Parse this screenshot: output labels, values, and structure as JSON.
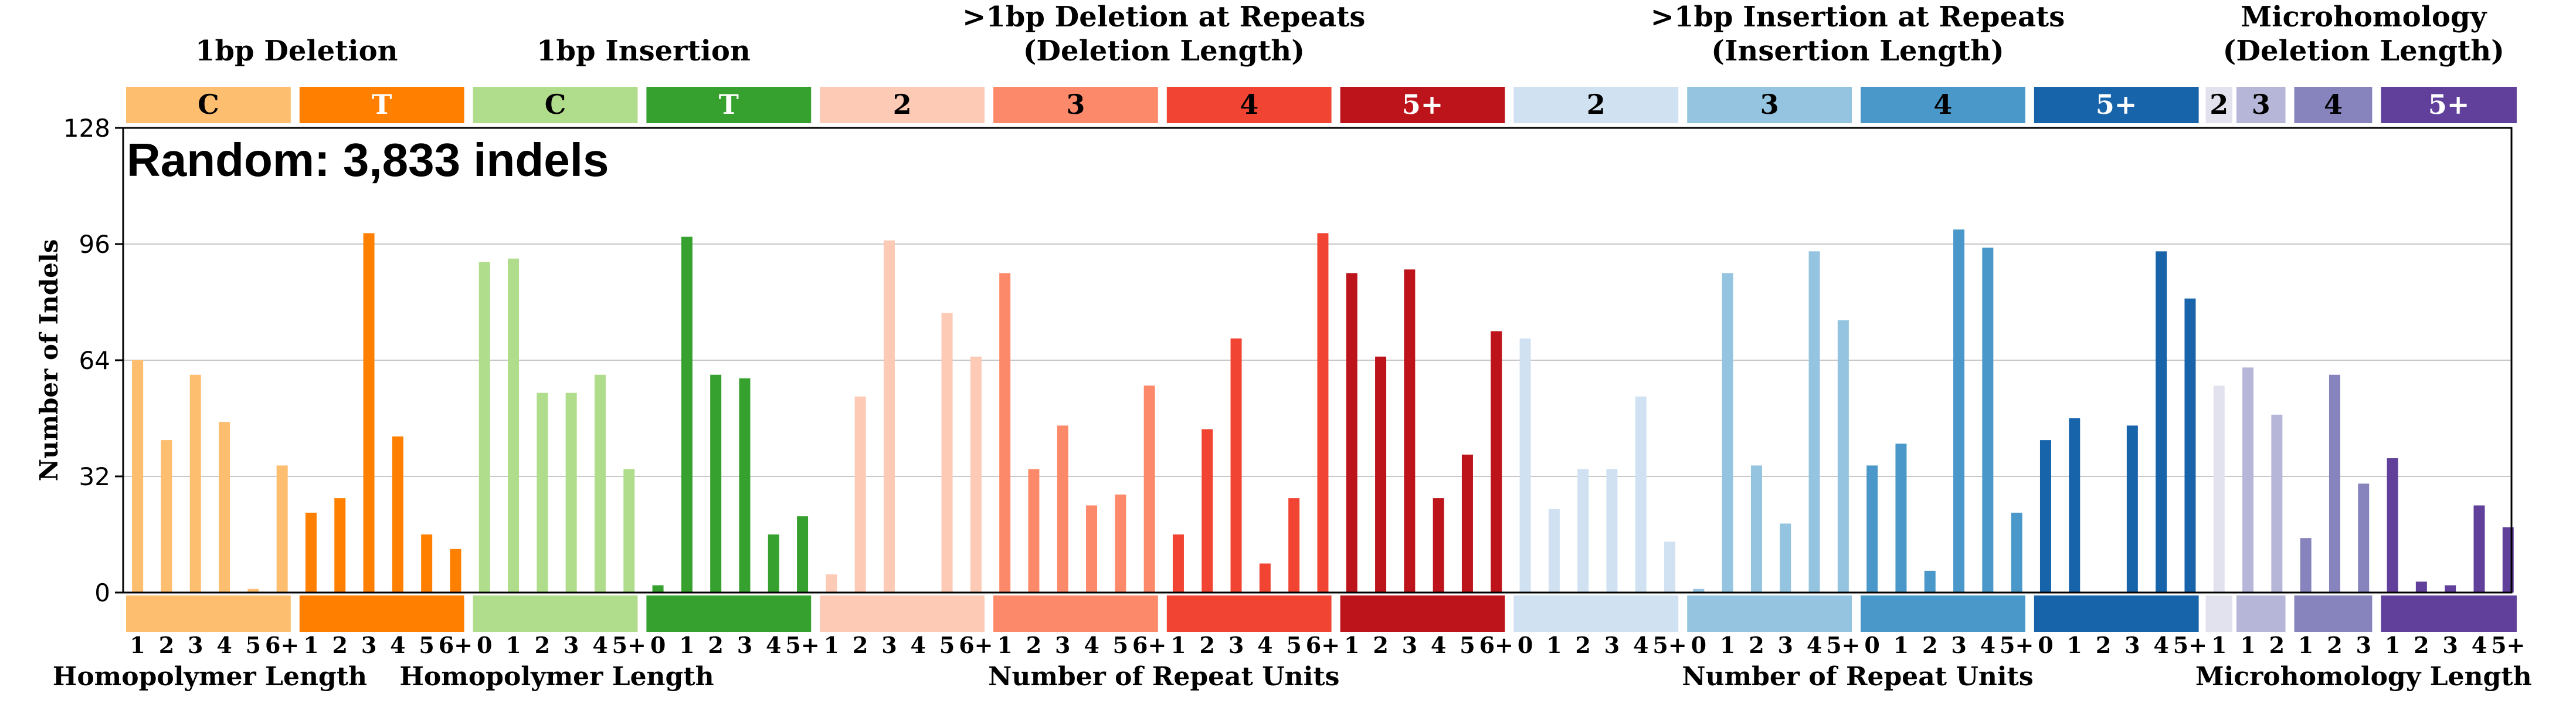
{
  "chart_data": {
    "type": "bar",
    "title": "Random: 3,833 indels",
    "ylabel": "Number of Indels",
    "ylim": [
      0,
      128
    ],
    "yticks": [
      0,
      32,
      64,
      96,
      128
    ],
    "grid": true,
    "group_titles": [
      {
        "line1": "1bp Deletion",
        "line2": "",
        "span": [
          0,
          1
        ]
      },
      {
        "line1": "1bp Insertion",
        "line2": "",
        "span": [
          2,
          3
        ]
      },
      {
        "line1": ">1bp Deletion at Repeats",
        "line2": "(Deletion Length)",
        "span": [
          4,
          7
        ]
      },
      {
        "line1": ">1bp Insertion at Repeats",
        "line2": "(Insertion Length)",
        "span": [
          8,
          11
        ]
      },
      {
        "line1": "Microhomology",
        "line2": "(Deletion Length)",
        "span": [
          12,
          15
        ]
      }
    ],
    "bottom_labels": [
      {
        "text": "Homopolymer Length",
        "span": [
          0,
          0
        ]
      },
      {
        "text": "Homopolymer Length",
        "span": [
          2,
          2
        ]
      },
      {
        "text": "Number of Repeat Units",
        "span": [
          4,
          7
        ]
      },
      {
        "text": "Number of Repeat Units",
        "span": [
          8,
          11
        ]
      },
      {
        "text": "Microhomology Length",
        "span": [
          12,
          15
        ]
      }
    ],
    "categories": [
      {
        "label": "C",
        "color": "#FDBE6F",
        "text_color": "#000000",
        "ticks": [
          "1",
          "2",
          "3",
          "4",
          "5",
          "6+"
        ],
        "values": [
          64,
          42,
          60,
          47,
          1,
          35
        ]
      },
      {
        "label": "T",
        "color": "#FF8001",
        "text_color": "#ffffff",
        "ticks": [
          "1",
          "2",
          "3",
          "4",
          "5",
          "6+"
        ],
        "values": [
          22,
          26,
          99,
          43,
          16,
          12
        ]
      },
      {
        "label": "C",
        "color": "#B0DD8B",
        "text_color": "#000000",
        "ticks": [
          "0",
          "1",
          "2",
          "3",
          "4",
          "5+"
        ],
        "values": [
          91,
          92,
          55,
          55,
          60,
          34
        ]
      },
      {
        "label": "T",
        "color": "#36A12E",
        "text_color": "#ffffff",
        "ticks": [
          "0",
          "1",
          "2",
          "3",
          "4",
          "5+"
        ],
        "values": [
          2,
          98,
          60,
          59,
          16,
          21
        ]
      },
      {
        "label": "2",
        "color": "#FDCAB5",
        "text_color": "#000000",
        "ticks": [
          "1",
          "2",
          "3",
          "4",
          "5",
          "6+"
        ],
        "values": [
          5,
          54,
          97,
          0,
          77,
          65
        ]
      },
      {
        "label": "3",
        "color": "#FC8A6A",
        "text_color": "#000000",
        "ticks": [
          "1",
          "2",
          "3",
          "4",
          "5",
          "6+"
        ],
        "values": [
          88,
          34,
          46,
          24,
          27,
          57
        ]
      },
      {
        "label": "4",
        "color": "#F14432",
        "text_color": "#000000",
        "ticks": [
          "1",
          "2",
          "3",
          "4",
          "5",
          "6+"
        ],
        "values": [
          16,
          45,
          70,
          8,
          26,
          99
        ]
      },
      {
        "label": "5+",
        "color": "#BC141A",
        "text_color": "#ffffff",
        "ticks": [
          "1",
          "2",
          "3",
          "4",
          "5",
          "6+"
        ],
        "values": [
          88,
          65,
          89,
          26,
          38,
          72
        ]
      },
      {
        "label": "2",
        "color": "#D0E1F2",
        "text_color": "#000000",
        "ticks": [
          "0",
          "1",
          "2",
          "3",
          "4",
          "5+"
        ],
        "values": [
          70,
          23,
          34,
          34,
          54,
          14
        ]
      },
      {
        "label": "3",
        "color": "#94C4DF",
        "text_color": "#000000",
        "ticks": [
          "0",
          "1",
          "2",
          "3",
          "4",
          "5+"
        ],
        "values": [
          1,
          88,
          35,
          19,
          94,
          75
        ]
      },
      {
        "label": "4",
        "color": "#4A98C9",
        "text_color": "#000000",
        "ticks": [
          "0",
          "1",
          "2",
          "3",
          "4",
          "5+"
        ],
        "values": [
          35,
          41,
          6,
          100,
          95,
          22
        ]
      },
      {
        "label": "5+",
        "color": "#1764AB",
        "text_color": "#ffffff",
        "ticks": [
          "0",
          "1",
          "2",
          "3",
          "4",
          "5+"
        ],
        "values": [
          42,
          48,
          0,
          46,
          94,
          81
        ]
      },
      {
        "label": "2",
        "color": "#E2E2EF",
        "text_color": "#000000",
        "ticks": [
          "1"
        ],
        "values": [
          57
        ]
      },
      {
        "label": "3",
        "color": "#B6B6D8",
        "text_color": "#000000",
        "ticks": [
          "1",
          "2"
        ],
        "values": [
          62,
          49
        ]
      },
      {
        "label": "4",
        "color": "#8683BD",
        "text_color": "#000000",
        "ticks": [
          "1",
          "2",
          "3"
        ],
        "values": [
          15,
          60,
          30
        ]
      },
      {
        "label": "5+",
        "color": "#61409B",
        "text_color": "#ffffff",
        "ticks": [
          "1",
          "2",
          "3",
          "4",
          "5+"
        ],
        "values": [
          37,
          3,
          2,
          24,
          18
        ]
      }
    ]
  }
}
